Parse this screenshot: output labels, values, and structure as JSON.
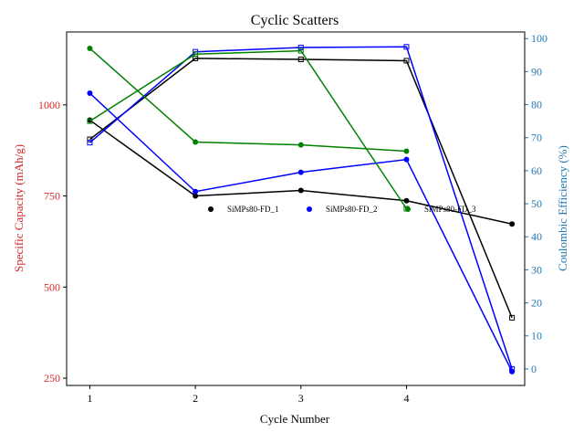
{
  "chart_data": {
    "type": "line",
    "title": "Cyclic Scatters",
    "xlabel": "Cycle Number",
    "ylabel_left": "Specific Capacity (mAh/g)",
    "ylabel_right": "Coulombic Efficiency (%)",
    "x_ticks": [
      1,
      2,
      3,
      4
    ],
    "xlim": [
      0.78,
      5.12
    ],
    "ylim_left": [
      230,
      1200
    ],
    "ylim_right": [
      -5,
      102
    ],
    "y_ticks_left": [
      250,
      500,
      750,
      1000
    ],
    "y_ticks_right": [
      0,
      10,
      20,
      30,
      40,
      50,
      60,
      70,
      80,
      90,
      100
    ],
    "colors": {
      "left_axis": "#d62728",
      "right_axis": "#1f77b4"
    },
    "legend": {
      "placement": "center",
      "entries": [
        "SiMPs80-FD_1",
        "SiMPs80-FD_2",
        "SiMPs80-FD_3"
      ]
    },
    "series": [
      {
        "name": "SiMPs80-FD_1",
        "color": "#000000",
        "capacity": {
          "x": [
            1,
            2,
            3,
            4,
            5
          ],
          "y": [
            958,
            750,
            765,
            737,
            673
          ]
        },
        "efficiency": {
          "x": [
            1,
            2,
            3,
            4,
            5
          ],
          "y": [
            69.5,
            94,
            93.7,
            93.3,
            15.5
          ]
        }
      },
      {
        "name": "SiMPs80-FD_2",
        "color": "#0000ff",
        "capacity": {
          "x": [
            1,
            2,
            3,
            4,
            5
          ],
          "y": [
            1032,
            762,
            815,
            850,
            268
          ]
        },
        "efficiency": {
          "x": [
            1,
            2,
            3,
            4,
            5
          ],
          "y": [
            68.5,
            96,
            97.3,
            97.5,
            0
          ]
        }
      },
      {
        "name": "SiMPs80-FD_3",
        "color": "#008000",
        "capacity": {
          "x": [
            1,
            2,
            3,
            4
          ],
          "y": [
            1155,
            898,
            890,
            873
          ]
        },
        "efficiency": {
          "x": [
            1,
            2,
            3,
            4
          ],
          "y": [
            75,
            95.3,
            96.3,
            48.5
          ]
        }
      }
    ]
  }
}
